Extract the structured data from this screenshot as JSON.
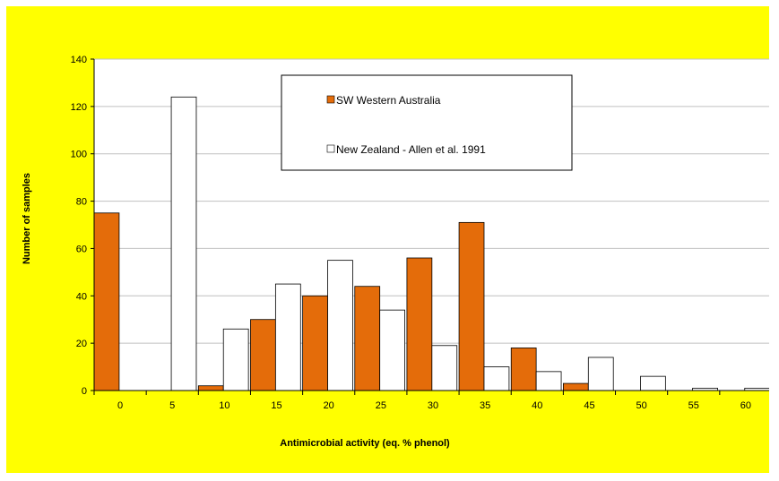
{
  "colors": {
    "background": "#ffff00",
    "plot_area": "#ffffff",
    "series_1": "#e46c0a",
    "series_2": "#ffffff",
    "gridline": "#c0c0c0"
  },
  "chart_data": {
    "type": "bar",
    "title": "",
    "xlabel": "Antimicrobial activity (eq. % phenol)",
    "ylabel": "Number of samples",
    "ylim": [
      0,
      140
    ],
    "yticks": [
      0,
      20,
      40,
      60,
      80,
      100,
      120,
      140
    ],
    "grid": "horizontal",
    "legend_position": "top-center",
    "categories": [
      "0",
      "5",
      "10",
      "15",
      "20",
      "25",
      "30",
      "35",
      "40",
      "45",
      "50",
      "55",
      "60"
    ],
    "series": [
      {
        "name": "SW Western Australia",
        "color": "#e46c0a",
        "values": [
          75,
          0,
          2,
          30,
          40,
          44,
          56,
          71,
          18,
          3,
          0,
          0,
          0
        ]
      },
      {
        "name": "New Zealand - Allen et al. 1991",
        "color": "#ffffff",
        "values": [
          0,
          124,
          26,
          45,
          55,
          34,
          19,
          10,
          8,
          14,
          6,
          1,
          1
        ]
      }
    ]
  }
}
